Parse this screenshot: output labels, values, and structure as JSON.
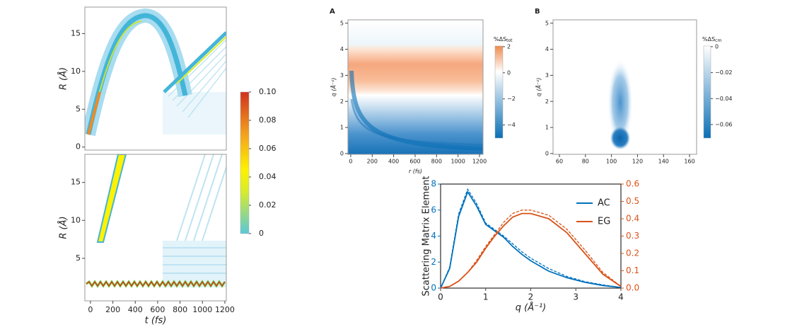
{
  "chart_data": [
    {
      "type": "heatmap",
      "ylabel": "R (Å)",
      "xlim": [
        -50,
        1213
      ],
      "ylim": [
        -0.4,
        18.5
      ],
      "yticks": [
        0,
        5,
        10,
        15
      ]
    },
    {
      "type": "heatmap",
      "xlabel": "t (fs)",
      "ylabel": "R (Å)",
      "xlim": [
        -50,
        1213
      ],
      "xticks": [
        0,
        200,
        400,
        600,
        800,
        1000,
        1200
      ],
      "ylim": [
        -0.6,
        18.7
      ],
      "yticks": [
        5,
        10,
        15
      ],
      "colorbar": {
        "lim": [
          0,
          0.1
        ],
        "ticks": [
          0,
          0.02,
          0.04,
          0.06,
          0.08,
          {
            "value": 0.1,
            "label": "0.10"
          }
        ]
      }
    },
    {
      "type": "heatmap",
      "panel": "A",
      "xlabel": "r (fs)",
      "ylabel": "q (Å⁻¹)",
      "xlim": [
        -26,
        1233
      ],
      "xticks": [
        0,
        200,
        400,
        600,
        800,
        1000,
        1200
      ],
      "ylim": [
        -0.03,
        5.13
      ],
      "yticks": [
        0,
        1,
        2,
        3,
        4,
        5
      ],
      "colorbar": {
        "label": "%ΔS",
        "label_sub": "tot",
        "lim": [
          -5,
          2.05
        ],
        "ticks": [
          2,
          0,
          {
            "value": -2,
            "label": "−2"
          },
          {
            "value": -4,
            "label": "−4"
          }
        ]
      }
    },
    {
      "type": "heatmap",
      "panel": "B",
      "xlim": [
        55.1,
        165.4
      ],
      "xticks": [
        60,
        80,
        100,
        120,
        140,
        160
      ],
      "ylim": [
        -0.03,
        5.13
      ],
      "yticks": [
        0,
        1,
        2,
        3,
        4,
        5
      ],
      "ylabel": "q (Å⁻¹)",
      "colorbar": {
        "label": "%ΔS",
        "label_sub": "cm",
        "lim": [
          -0.0704,
          0.0005
        ],
        "ticks": [
          0,
          {
            "value": -0.02,
            "label": "−0.02"
          },
          {
            "value": -0.04,
            "label": "−0.04"
          },
          {
            "value": -0.06,
            "label": "−0.06"
          }
        ]
      }
    },
    {
      "type": "line",
      "xlabel": "q (Å⁻¹)",
      "ylabel": "Scattering Matrix Element",
      "xlim": [
        0,
        4
      ],
      "xticks": [
        0,
        1,
        2,
        3,
        4
      ],
      "ylim": [
        0,
        8
      ],
      "yticks": [
        0,
        2,
        4,
        6,
        8
      ],
      "y2lim": [
        0,
        0.6
      ],
      "y2ticks": [
        {
          "value": 0,
          "label": "0.0"
        },
        0.1,
        0.2,
        0.3,
        0.4,
        0.5,
        0.6
      ],
      "x": [
        0,
        0.2,
        0.4,
        0.6,
        0.8,
        1.0,
        1.2,
        1.4,
        1.6,
        1.8,
        2.0,
        2.4,
        2.8,
        3.2,
        3.6,
        4.0
      ],
      "series": [
        {
          "name": "AC",
          "color": "#0072bd",
          "values": [
            0,
            1.5,
            5.5,
            7.4,
            6.3,
            4.9,
            4.4,
            3.9,
            3.2,
            2.6,
            2.1,
            1.3,
            0.8,
            0.45,
            0.2,
            0.05
          ]
        },
        {
          "color": "#0072bd",
          "dashed": true,
          "values": [
            0,
            1.6,
            5.7,
            7.6,
            6.5,
            5.0,
            4.5,
            4.0,
            3.4,
            2.8,
            2.3,
            1.5,
            0.9,
            0.5,
            0.25,
            0.05
          ]
        },
        {
          "name": "EG",
          "color": "#d95319",
          "axis": "y2",
          "values": [
            0,
            0.01,
            0.04,
            0.09,
            0.15,
            0.23,
            0.3,
            0.36,
            0.41,
            0.43,
            0.43,
            0.4,
            0.32,
            0.2,
            0.08,
            0.01
          ]
        },
        {
          "color": "#d95319",
          "axis": "y2",
          "dashed": true,
          "values": [
            0,
            0.01,
            0.04,
            0.09,
            0.16,
            0.24,
            0.31,
            0.38,
            0.43,
            0.45,
            0.45,
            0.42,
            0.34,
            0.22,
            0.09,
            0.01
          ]
        }
      ],
      "legend": "upper right"
    }
  ]
}
